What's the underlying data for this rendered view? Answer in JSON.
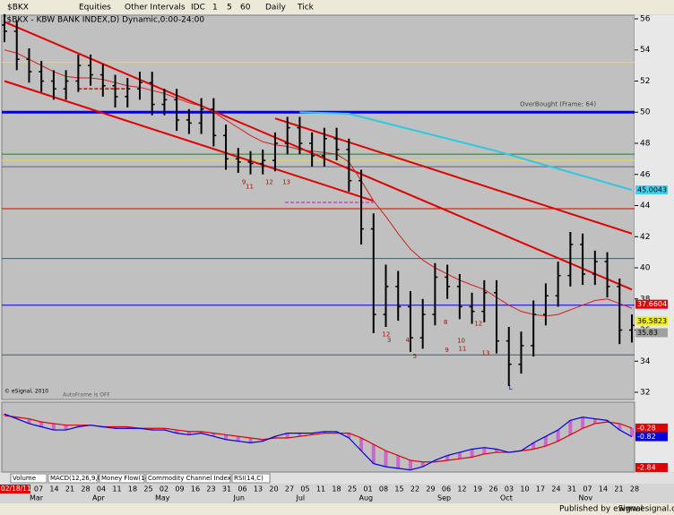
{
  "toolbar": {
    "symbol": "$BKX",
    "items": [
      "Equities",
      "Other Intervals",
      "IDC",
      "1",
      "5",
      "60",
      "Daily",
      "Tick"
    ]
  },
  "chart_data": [
    {
      "type": "ohlc",
      "title": "($BKX - KBW BANK INDEX,D) Dynamic,0:00-24:00",
      "start_label": "02/18/11",
      "x_labels": [
        "07",
        "14",
        "21",
        "28",
        "04",
        "11",
        "18",
        "25",
        "02",
        "09",
        "16",
        "23",
        "31",
        "06",
        "13",
        "20",
        "27",
        "05",
        "11",
        "18",
        "25",
        "01",
        "08",
        "15",
        "22",
        "29",
        "06",
        "12",
        "19",
        "26",
        "03",
        "10",
        "17",
        "24",
        "31",
        "07",
        "14",
        "21",
        "28"
      ],
      "months": [
        "Mar",
        "Apr",
        "May",
        "Jun",
        "Jul",
        "Aug",
        "Sep",
        "Oct",
        "Nov"
      ],
      "color": "#000000",
      "open": [
        55.6,
        55.2,
        53.4,
        52.6,
        52.0,
        51.5,
        52.0,
        53.0,
        52.4,
        51.7,
        51.0,
        51.5,
        51.9,
        50.5,
        50.8,
        49.5,
        49.3,
        50.2,
        48.5,
        47.0,
        46.8,
        46.7,
        46.9,
        48.0,
        49.0,
        48.0,
        47.2,
        48.3,
        47.6,
        45.6,
        42.5,
        37.0,
        38.8,
        37.5,
        35.5,
        37.0,
        39.4,
        38.8,
        37.5,
        37.2,
        38.4,
        35.3,
        33.8,
        35.0,
        37.0,
        38.2,
        39.5,
        41.5,
        39.6,
        40.4,
        38.8,
        36.0
      ],
      "high": [
        56.3,
        55.9,
        54.1,
        53.3,
        52.7,
        52.7,
        53.7,
        53.7,
        53.1,
        52.4,
        52.2,
        52.6,
        52.6,
        51.5,
        51.5,
        50.2,
        50.9,
        50.9,
        49.2,
        47.7,
        47.5,
        47.6,
        48.7,
        49.7,
        49.7,
        48.7,
        49.0,
        49.0,
        48.3,
        46.3,
        43.5,
        40.2,
        39.8,
        38.5,
        38.0,
        40.3,
        40.2,
        39.6,
        38.4,
        39.2,
        39.2,
        36.2,
        35.9,
        37.9,
        39.0,
        40.4,
        42.3,
        42.2,
        41.1,
        41.0,
        39.3,
        37.0
      ],
      "low": [
        54.5,
        52.7,
        51.9,
        51.3,
        50.8,
        50.8,
        51.3,
        51.7,
        51.0,
        50.3,
        50.3,
        50.8,
        49.8,
        49.8,
        48.8,
        48.6,
        48.6,
        47.8,
        46.3,
        46.1,
        46.0,
        46.0,
        46.2,
        47.3,
        47.3,
        46.5,
        46.5,
        46.9,
        44.9,
        41.5,
        35.8,
        36.2,
        36.6,
        34.6,
        34.8,
        36.3,
        38.0,
        36.7,
        36.4,
        36.5,
        34.5,
        32.4,
        33.2,
        34.3,
        36.3,
        37.5,
        38.8,
        38.9,
        38.9,
        38.1,
        35.1,
        35.2
      ],
      "close": [
        55.2,
        53.4,
        52.6,
        52.0,
        51.5,
        52.0,
        53.0,
        52.4,
        51.7,
        51.0,
        51.5,
        51.9,
        50.5,
        50.8,
        49.5,
        49.3,
        50.2,
        48.5,
        47.0,
        46.8,
        46.7,
        46.9,
        48.0,
        49.0,
        48.0,
        47.2,
        48.3,
        47.6,
        45.6,
        42.5,
        37.0,
        38.8,
        37.5,
        35.5,
        37.0,
        39.4,
        38.8,
        37.5,
        37.2,
        38.4,
        35.3,
        33.8,
        35.0,
        37.0,
        38.2,
        39.5,
        41.5,
        39.6,
        40.4,
        38.8,
        36.0,
        36.3
      ],
      "moving_average": {
        "color": "#d02020",
        "values": [
          54.0,
          53.8,
          53.4,
          53.0,
          52.6,
          52.3,
          52.2,
          52.2,
          52.1,
          51.9,
          51.7,
          51.6,
          51.4,
          51.2,
          50.9,
          50.6,
          50.4,
          50.0,
          49.5,
          49.0,
          48.5,
          48.1,
          47.9,
          47.8,
          47.6,
          47.5,
          47.4,
          47.3,
          46.8,
          45.6,
          44.3,
          43.3,
          42.2,
          41.2,
          40.5,
          40.0,
          39.6,
          39.2,
          38.9,
          38.6,
          38.1,
          37.6,
          37.2,
          37.0,
          36.9,
          37.0,
          37.3,
          37.6,
          37.9,
          38.0,
          37.7,
          37.4
        ]
      },
      "hlines": [
        {
          "value": 53.2,
          "color": "#e8e800"
        },
        {
          "value": 50.0,
          "color": "#0000d0",
          "style": "thick"
        },
        {
          "value": 47.3,
          "color": "#208020"
        },
        {
          "value": 46.9,
          "color": "#e8e800"
        },
        {
          "value": 46.5,
          "color": "#606080"
        },
        {
          "value": 43.8,
          "color": "#e00000"
        },
        {
          "value": 40.6,
          "color": "#406060"
        },
        {
          "value": 37.6,
          "color": "#0000d0"
        },
        {
          "value": 34.4,
          "color": "#406060"
        }
      ],
      "trendlines": [
        {
          "x": [
            0,
            51
          ],
          "y": [
            55.8,
            38.6
          ],
          "color": "#e00000"
        },
        {
          "x": [
            0,
            30
          ],
          "y": [
            52.0,
            44.3
          ],
          "color": "#e00000"
        },
        {
          "x": [
            22,
            51
          ],
          "y": [
            49.6,
            42.2
          ],
          "color": "#e00000"
        },
        {
          "x": [
            24,
            28,
            40,
            51
          ],
          "y": [
            50.0,
            49.9,
            47.5,
            45.0
          ],
          "color": "#30c8e0"
        }
      ],
      "dashes": [
        {
          "x": [
            6,
            10
          ],
          "y": [
            51.5,
            51.5
          ],
          "color": "#e00000"
        },
        {
          "x": [
            22.8,
            30
          ],
          "y": [
            44.2,
            44.2
          ],
          "color": "#d040d0"
        }
      ],
      "annotations": [
        {
          "text": "9",
          "x": 19.3,
          "y": 45.5,
          "color": "#c00000"
        },
        {
          "text": "11",
          "x": 19.6,
          "y": 45.2,
          "color": "#c00000"
        },
        {
          "text": "12",
          "x": 21.2,
          "y": 45.5,
          "color": "#c00000"
        },
        {
          "text": "13",
          "x": 22.6,
          "y": 45.5,
          "color": "#c00000"
        },
        {
          "text": "12",
          "x": 30.7,
          "y": 35.7,
          "color": "#c00000"
        },
        {
          "text": "3",
          "x": 31.1,
          "y": 35.35,
          "color": "#c00000"
        },
        {
          "text": "4",
          "x": 32.6,
          "y": 35.35,
          "color": "#c00000"
        },
        {
          "text": "5",
          "x": 33.2,
          "y": 34.3,
          "color": "#c00000"
        },
        {
          "text": "8",
          "x": 35.7,
          "y": 36.5,
          "color": "#c00000"
        },
        {
          "text": "9",
          "x": 35.8,
          "y": 34.7,
          "color": "#c00000"
        },
        {
          "text": "10",
          "x": 36.8,
          "y": 35.3,
          "color": "#c00000"
        },
        {
          "text": "11",
          "x": 36.9,
          "y": 34.8,
          "color": "#c00000"
        },
        {
          "text": "12",
          "x": 38.2,
          "y": 36.4,
          "color": "#c00000"
        },
        {
          "text": "13",
          "x": 38.8,
          "y": 34.5,
          "color": "#c00000"
        },
        {
          "text": "L",
          "x": 41.0,
          "y": 32.3,
          "color": "#0000a0"
        },
        {
          "text": "OverBought (Frame: 64)",
          "x": 41.9,
          "y": 50.5,
          "color": "#404040"
        }
      ],
      "tags": [
        {
          "value": 45.0043,
          "color": "#40d0f0"
        },
        {
          "value": 37.6604,
          "color": "#e00000"
        },
        {
          "value": 36.5823,
          "color": "#f0f000"
        },
        {
          "value": 35.83,
          "color": "#a0a0a0"
        }
      ],
      "notes": [
        "© eSignal, 2010",
        "AutoFrame is OFF"
      ],
      "ylim": [
        31.54,
        56.23
      ],
      "yticks": [
        32,
        34,
        36,
        38,
        40,
        42,
        44,
        46,
        48,
        50,
        52,
        54,
        56
      ]
    },
    {
      "type": "macd",
      "macd": {
        "color": "#0000e0",
        "values": [
          0.6,
          0.3,
          0.0,
          -0.2,
          -0.4,
          -0.4,
          -0.2,
          -0.1,
          -0.2,
          -0.3,
          -0.3,
          -0.3,
          -0.4,
          -0.4,
          -0.6,
          -0.7,
          -0.6,
          -0.8,
          -1.0,
          -1.1,
          -1.2,
          -1.1,
          -0.8,
          -0.6,
          -0.6,
          -0.6,
          -0.5,
          -0.5,
          -0.9,
          -1.7,
          -2.5,
          -2.7,
          -2.8,
          -2.9,
          -2.7,
          -2.3,
          -2.0,
          -1.8,
          -1.6,
          -1.5,
          -1.6,
          -1.8,
          -1.7,
          -1.2,
          -0.8,
          -0.4,
          0.2,
          0.4,
          0.3,
          0.2,
          -0.4,
          -0.82
        ]
      },
      "signal": {
        "color": "#e00000",
        "values": [
          0.5,
          0.4,
          0.3,
          0.1,
          0.0,
          -0.1,
          -0.1,
          -0.1,
          -0.2,
          -0.2,
          -0.2,
          -0.3,
          -0.3,
          -0.3,
          -0.4,
          -0.5,
          -0.5,
          -0.6,
          -0.7,
          -0.8,
          -0.9,
          -1.0,
          -0.9,
          -0.9,
          -0.8,
          -0.7,
          -0.6,
          -0.6,
          -0.6,
          -0.9,
          -1.3,
          -1.7,
          -2.0,
          -2.3,
          -2.4,
          -2.4,
          -2.3,
          -2.2,
          -2.1,
          -1.9,
          -1.8,
          -1.8,
          -1.7,
          -1.6,
          -1.4,
          -1.1,
          -0.7,
          -0.3,
          0.0,
          0.1,
          0.0,
          -0.28
        ]
      },
      "histogram_color": "#d040d0",
      "tags": [
        {
          "value": -0.28,
          "color": "#e00000"
        },
        {
          "value": -0.82,
          "color": "#0000e0"
        },
        {
          "value": -2.84,
          "color": "#e00000"
        }
      ],
      "ylim": [
        -3.03,
        1.34
      ]
    }
  ],
  "tabs": [
    "Volume",
    "MACD(12,26,9,C)",
    "Money Flow(14)",
    "Commodity Channel Index(23,C)",
    "RSI(14,C)"
  ],
  "footer": {
    "text": "Published by eSignal",
    "url": "www.esignal.com"
  }
}
